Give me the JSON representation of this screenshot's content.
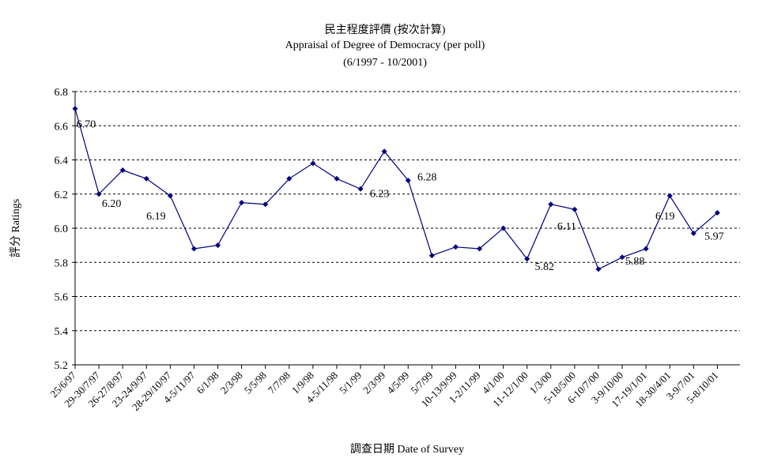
{
  "chart_data": {
    "type": "line",
    "title": "民主程度評價 (按次計算)",
    "subtitle": "Appraisal of Degree of Democracy (per poll)",
    "period": "(6/1997 - 10/2001)",
    "xlabel": "調查日期 Date of Survey",
    "ylabel": "評分 Ratings",
    "ylim": [
      5.2,
      6.8
    ],
    "yticks": [
      "5.2",
      "5.4",
      "5.6",
      "5.8",
      "6.0",
      "6.2",
      "6.4",
      "6.6",
      "6.8"
    ],
    "grid": "horizontal dashed",
    "legend": "none",
    "colors": {
      "line": "#000080",
      "marker": "#000080",
      "grid": "#000000",
      "axis": "#000000"
    },
    "categories": [
      "25/6/97",
      "29-30/7/97",
      "26-27/8/97",
      "23-24/9/97",
      "28-29/10/97",
      "4-5/11/97",
      "6/1/98",
      "2/3/98",
      "5/5/98",
      "7/7/98",
      "1/9/98",
      "4-5/11/98",
      "5/1/99",
      "2/3/99",
      "4/5/99",
      "5/7/99",
      "10-13/9/99",
      "1-2/11/99",
      "4/1/00",
      "11-12/1/00",
      "1/3/00",
      "5-18/5/00",
      "6-10/7/00",
      "3-9/10/00",
      "17-19/1/01",
      "18-30/4/01",
      "3-9/7/01",
      "5-8/10/01"
    ],
    "x_positions": [
      0,
      1,
      2,
      3,
      4,
      5,
      6,
      7,
      8,
      9,
      10,
      11,
      12,
      13,
      14,
      15,
      16,
      17,
      18,
      19,
      20,
      21,
      22,
      23,
      24,
      25,
      26,
      27
    ],
    "values": [
      6.7,
      6.2,
      6.34,
      6.29,
      6.19,
      5.88,
      5.9,
      6.15,
      6.14,
      6.29,
      6.38,
      6.29,
      6.23,
      6.45,
      6.28,
      5.84,
      5.89,
      5.88,
      6.0,
      5.82,
      6.14,
      6.11,
      5.76,
      5.83,
      5.88,
      6.19,
      5.97,
      6.09
    ],
    "data_labels": [
      {
        "index": 0,
        "text": "6.70"
      },
      {
        "index": 1,
        "text": "6.20"
      },
      {
        "index": 4,
        "text": "6.19"
      },
      {
        "index": 12,
        "text": "6.23"
      },
      {
        "index": 14,
        "text": "6.28"
      },
      {
        "index": 19,
        "text": "5.82"
      },
      {
        "index": 21,
        "text": "6.11"
      },
      {
        "index": 24,
        "text": "5.88"
      },
      {
        "index": 25,
        "text": "6.19"
      },
      {
        "index": 26,
        "text": "5.97"
      }
    ]
  }
}
